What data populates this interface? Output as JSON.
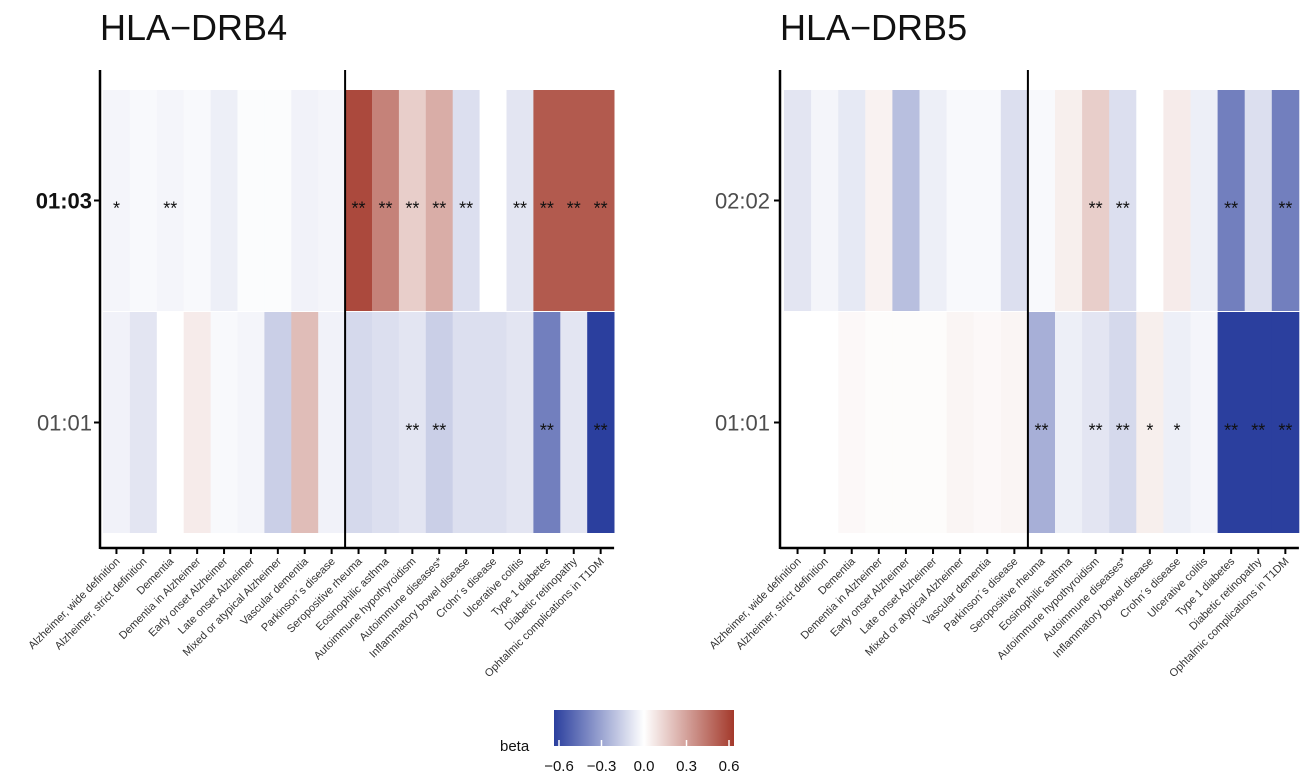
{
  "chart_data": [
    {
      "type": "heatmap",
      "title": "HLA−DRB4",
      "x": [
        "Alzheimer, wide definition",
        "Alzheimer, strict definition",
        "Dementia",
        "Dementia in Alzheimer",
        "Early onset Alzheimer",
        "Late onset Alzheimer",
        "Mixed or atypical Alzheimer",
        "Vascular dementia",
        "Parkinson´s disease",
        "Seropositive rheuma",
        "Eosinophilic asthma",
        "Autoimmune hypothyroidism",
        "Autoimmune diseases*",
        "Inflammatory bowel disease",
        "Crohn´s disease",
        "Ulcerative colitis",
        "Type 1 diabetes",
        "Diabetic retinopathy",
        "Ophtalmic complications in T1DM"
      ],
      "y": [
        "01:03",
        "01:01"
      ],
      "bold_y": "01:03",
      "divider_after_index": 8,
      "values": [
        [
          -0.03,
          -0.02,
          -0.03,
          -0.02,
          -0.05,
          -0.01,
          -0.01,
          -0.04,
          -0.03,
          0.55,
          0.38,
          0.15,
          0.25,
          -0.1,
          0.0,
          -0.08,
          0.5,
          0.5,
          0.5
        ],
        [
          -0.04,
          -0.08,
          0.0,
          0.06,
          -0.02,
          -0.03,
          -0.15,
          0.2,
          -0.04,
          -0.12,
          -0.1,
          -0.08,
          -0.15,
          -0.1,
          -0.1,
          -0.08,
          -0.4,
          -0.08,
          -0.6
        ]
      ],
      "stars": [
        [
          "*",
          "",
          "**",
          "",
          "",
          "",
          "",
          "",
          "",
          "**",
          "**",
          "**",
          "**",
          "**",
          "",
          "**",
          "**",
          "**",
          "**"
        ],
        [
          "",
          "",
          "",
          "",
          "",
          "",
          "",
          "",
          "",
          "",
          "",
          "**",
          "**",
          "",
          "",
          "",
          "**",
          "",
          "**"
        ]
      ]
    },
    {
      "type": "heatmap",
      "title": "HLA−DRB5",
      "x": [
        "Alzheimer, wide definition",
        "Alzheimer, strict definition",
        "Dementia",
        "Dementia in Alzheimer",
        "Early onset Alzheimer",
        "Late onset Alzheimer",
        "Mixed or atypical Alzheimer",
        "Vascular dementia",
        "Parkinson´s disease",
        "Seropositive rheuma",
        "Eosinophilic asthma",
        "Autoimmune hypothyroidism",
        "Autoimmune diseases*",
        "Inflammatory bowel disease",
        "Crohn´s disease",
        "Ulcerative colitis",
        "Type 1 diabetes",
        "Diabetic retinopathy",
        "Ophtalmic complications in T1DM"
      ],
      "y": [
        "02:02",
        "01:01"
      ],
      "bold_y": "",
      "divider_after_index": 8,
      "values": [
        [
          -0.08,
          -0.03,
          -0.07,
          0.04,
          -0.2,
          -0.05,
          -0.02,
          -0.02,
          -0.1,
          -0.02,
          0.05,
          0.15,
          -0.1,
          0.0,
          0.06,
          -0.05,
          -0.4,
          -0.1,
          -0.4
        ],
        [
          0.0,
          0.0,
          0.02,
          0.01,
          0.01,
          0.01,
          0.03,
          0.02,
          0.03,
          -0.25,
          -0.05,
          -0.08,
          -0.12,
          0.05,
          -0.05,
          -0.03,
          -0.6,
          -0.6,
          -0.6
        ]
      ],
      "stars": [
        [
          "",
          "",
          "",
          "",
          "",
          "",
          "",
          "",
          "",
          "",
          "",
          "**",
          "**",
          "",
          "",
          "",
          "**",
          "",
          "**"
        ],
        [
          "",
          "",
          "",
          "",
          "",
          "",
          "",
          "",
          "",
          "**",
          "",
          "**",
          "**",
          "*",
          "*",
          "",
          "**",
          "**",
          "**"
        ]
      ]
    }
  ],
  "legend": {
    "title": "beta",
    "range": [
      -0.6,
      0.6
    ],
    "ticks": [
      "−0.6",
      "−0.3",
      "0.0",
      "0.3",
      "0.6"
    ],
    "colors": {
      "low": "#2b3f9e",
      "mid": "#ffffff",
      "high": "#a3392b"
    }
  }
}
